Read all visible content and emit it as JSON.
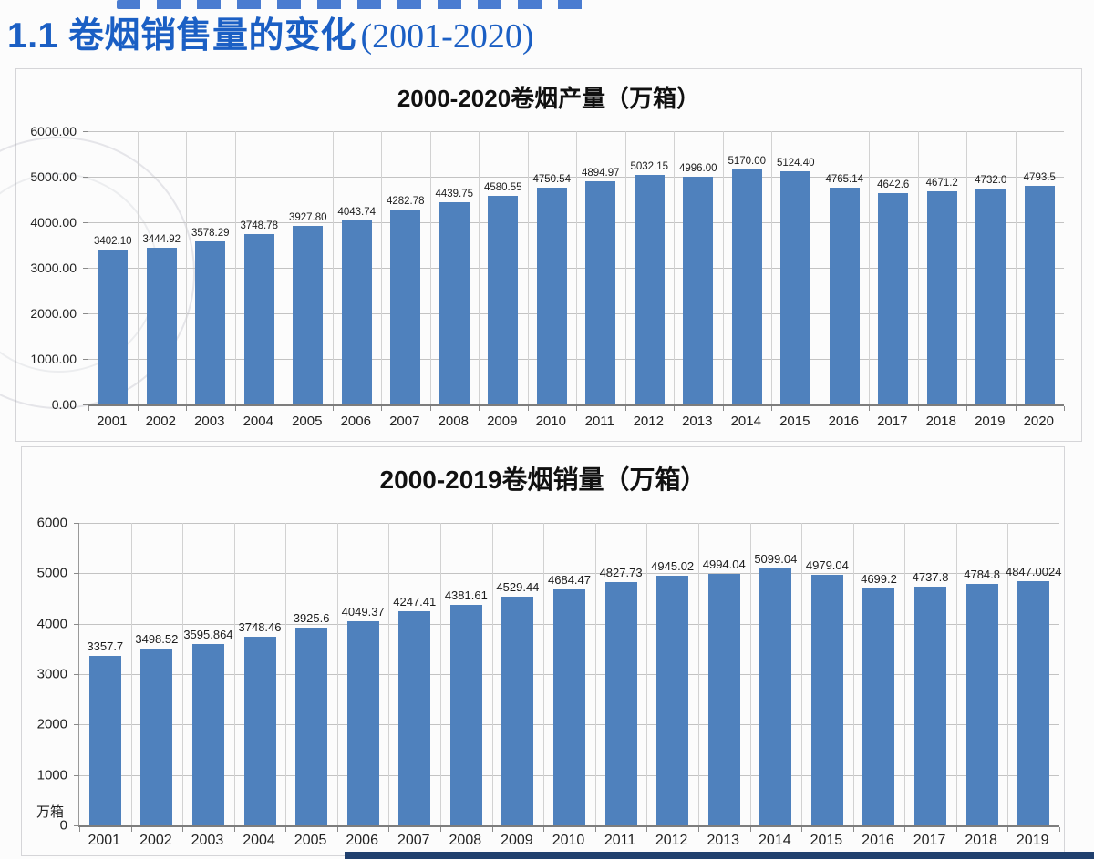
{
  "header": {
    "section_title": "1.1 卷烟销售量的变化",
    "section_title_suffix": "(2001-2020)"
  },
  "colors": {
    "heading_blue": "#1b5fc4",
    "bar_blue": "#4f81bd",
    "footer_band": "#20406e"
  },
  "chart_data": [
    {
      "type": "bar",
      "title": "2000-2020卷烟产量（万箱）",
      "categories": [
        "2001",
        "2002",
        "2003",
        "2004",
        "2005",
        "2006",
        "2007",
        "2008",
        "2009",
        "2010",
        "2011",
        "2012",
        "2013",
        "2014",
        "2015",
        "2016",
        "2017",
        "2018",
        "2019",
        "2020"
      ],
      "values": [
        3402.1,
        3444.92,
        3578.29,
        3748.78,
        3927.8,
        4043.74,
        4282.78,
        4439.75,
        4580.55,
        4750.54,
        4894.97,
        5032.15,
        4996.0,
        5170.0,
        5124.4,
        4765.14,
        4642.6,
        4671.2,
        4732.0,
        4793.5
      ],
      "labels": [
        "3402.10",
        "3444.92",
        "3578.29",
        "3748.78",
        "3927.80",
        "4043.74",
        "4282.78",
        "4439.75",
        "4580.55",
        "4750.54",
        "4894.97",
        "5032.15",
        "4996.00",
        "5170.00",
        "5124.40",
        "4765.14",
        "4642.6",
        "4671.2",
        "4732.0",
        "4793.5"
      ],
      "ylim": [
        0,
        6000
      ],
      "grid": true,
      "legend": "none",
      "bar_color": "#4f81bd",
      "yticks": [
        {
          "value": 0,
          "label": "0.00"
        },
        {
          "value": 1000,
          "label": "1000.00"
        },
        {
          "value": 2000,
          "label": "2000.00"
        },
        {
          "value": 3000,
          "label": "3000.00"
        },
        {
          "value": 4000,
          "label": "4000.00"
        },
        {
          "value": 5000,
          "label": "5000.00"
        },
        {
          "value": 6000,
          "label": "6000.00"
        }
      ]
    },
    {
      "type": "bar",
      "title": "2000-2019卷烟销量（万箱）",
      "categories": [
        "2001",
        "2002",
        "2003",
        "2004",
        "2005",
        "2006",
        "2007",
        "2008",
        "2009",
        "2010",
        "2011",
        "2012",
        "2013",
        "2014",
        "2015",
        "2016",
        "2017",
        "2018",
        "2019"
      ],
      "values": [
        3357.7,
        3498.52,
        3595.864,
        3748.46,
        3925.6,
        4049.37,
        4247.41,
        4381.61,
        4529.44,
        4684.47,
        4827.73,
        4945.02,
        4994.04,
        5099.04,
        4979.04,
        4699.2,
        4737.8,
        4784.8,
        4847.0024
      ],
      "labels": [
        "3357.7",
        "3498.52",
        "3595.864",
        "3748.46",
        "3925.6",
        "4049.37",
        "4247.41",
        "4381.61",
        "4529.44",
        "4684.47",
        "4827.73",
        "4945.02",
        "4994.04",
        "5099.04",
        "4979.04",
        "4699.2",
        "4737.8",
        "4784.8",
        "4847.0024"
      ],
      "ylim": [
        0,
        6000
      ],
      "grid": true,
      "legend": "none",
      "bar_color": "#4f81bd",
      "unit_label": "万箱",
      "yticks": [
        {
          "value": 0,
          "label": "0"
        },
        {
          "value": 1000,
          "label": "1000"
        },
        {
          "value": 2000,
          "label": "2000"
        },
        {
          "value": 3000,
          "label": "3000"
        },
        {
          "value": 4000,
          "label": "4000"
        },
        {
          "value": 5000,
          "label": "5000"
        },
        {
          "value": 6000,
          "label": "6000"
        }
      ]
    }
  ]
}
